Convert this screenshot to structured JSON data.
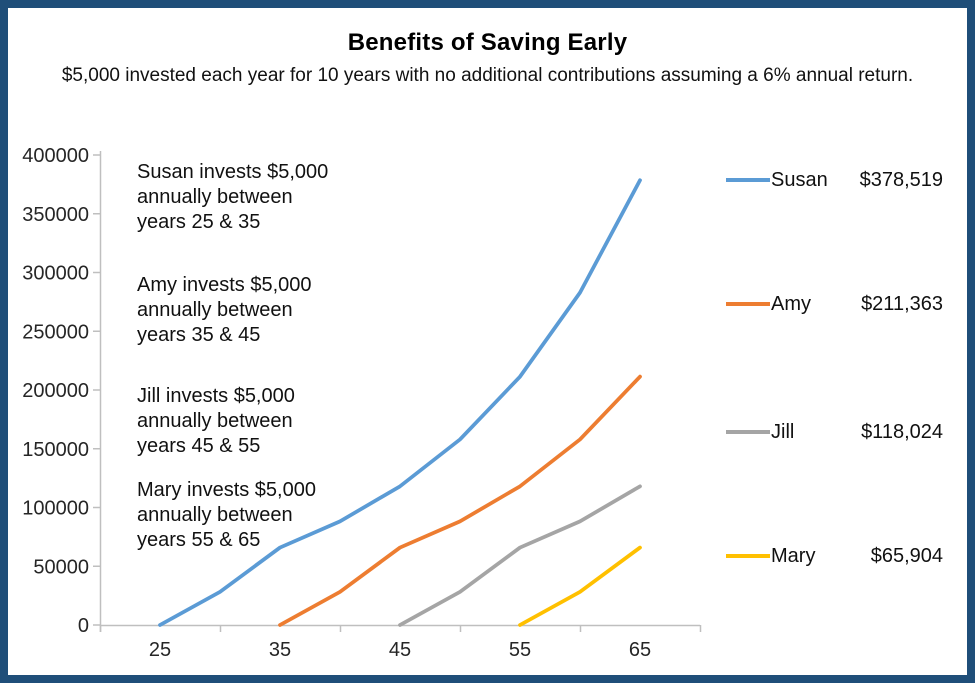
{
  "title": "Benefits of Saving Early",
  "subtitle": "$5,000 invested each year for 10 years with no additional contributions assuming a 6% annual return.",
  "frame": {
    "border_color": "#1F4E79",
    "background": "#FFFFFF"
  },
  "chart_data": {
    "type": "line",
    "title": "Benefits of Saving Early",
    "xlabel": "",
    "ylabel": "",
    "x_tick_years": [
      25,
      35,
      45,
      55,
      65
    ],
    "y_axis": {
      "min": 0,
      "max": 400000,
      "step": 50000
    },
    "grid": false,
    "axis_color": "#BFBFBF",
    "legend_position": "right",
    "series": [
      {
        "name": "Susan",
        "color": "#5B9BD5",
        "final_value": 378519,
        "final_value_label": "$378,519",
        "years": [
          25,
          30,
          35,
          40,
          45,
          50,
          55,
          60,
          65
        ],
        "values": [
          0,
          28185,
          65904,
          88196,
          118024,
          157944,
          211363,
          282851,
          378519
        ]
      },
      {
        "name": "Amy",
        "color": "#ED7D31",
        "final_value": 211363,
        "final_value_label": "$211,363",
        "years": [
          35,
          40,
          45,
          50,
          55,
          60,
          65
        ],
        "values": [
          0,
          28185,
          65904,
          88196,
          118024,
          157944,
          211363
        ]
      },
      {
        "name": "Jill",
        "color": "#A5A5A5",
        "final_value": 118024,
        "final_value_label": "$118,024",
        "years": [
          45,
          50,
          55,
          60,
          65
        ],
        "values": [
          0,
          28185,
          65904,
          88196,
          118024
        ]
      },
      {
        "name": "Mary",
        "color": "#FFC000",
        "final_value": 65904,
        "final_value_label": "$65,904",
        "years": [
          55,
          60,
          65
        ],
        "values": [
          0,
          28185,
          65904
        ]
      }
    ],
    "annotations": [
      {
        "lines": [
          "Susan invests $5,000",
          "annually between",
          "years 25 & 35"
        ]
      },
      {
        "lines": [
          "Amy invests $5,000",
          "annually between",
          "years 35 & 45"
        ]
      },
      {
        "lines": [
          "Jill invests $5,000",
          "annually between",
          "years 45 & 55"
        ]
      },
      {
        "lines": [
          "Mary invests $5,000",
          "annually between",
          "years 55 & 65"
        ]
      }
    ]
  },
  "legend": {
    "entries": [
      {
        "name": "Susan",
        "value": "$378,519"
      },
      {
        "name": "Amy",
        "value": "$211,363"
      },
      {
        "name": "Jill",
        "value": "$118,024"
      },
      {
        "name": "Mary",
        "value": "$65,904"
      }
    ]
  }
}
